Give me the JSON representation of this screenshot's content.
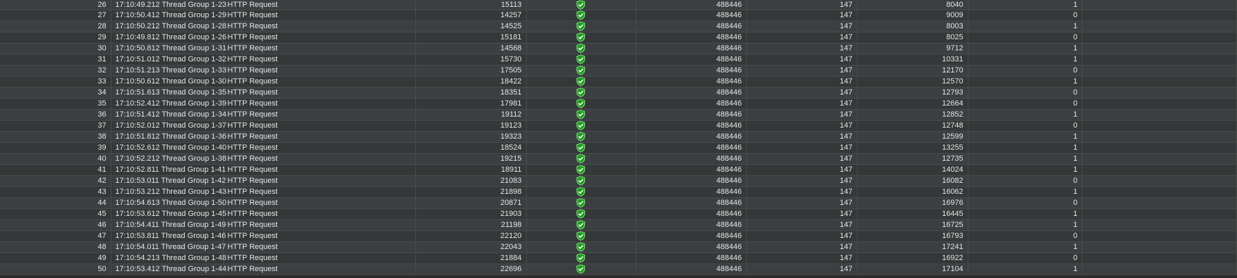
{
  "colors": {
    "row_odd": "#3c3f41",
    "row_even": "#353839",
    "grid": "#4a4a4a",
    "text": "#e6e6e6",
    "success": "#37c337"
  },
  "status_icon": "shield-check-icon",
  "rows": [
    {
      "no": "26",
      "start": "17:10:49.212",
      "thread": "Thread Group 1-23",
      "label": "HTTP Request",
      "time": "15113",
      "bytes": "488446",
      "sent": "147",
      "latency": "8040",
      "connect": "1"
    },
    {
      "no": "27",
      "start": "17:10:50.412",
      "thread": "Thread Group 1-29",
      "label": "HTTP Request",
      "time": "14257",
      "bytes": "488446",
      "sent": "147",
      "latency": "9009",
      "connect": "0"
    },
    {
      "no": "28",
      "start": "17:10:50.212",
      "thread": "Thread Group 1-28",
      "label": "HTTP Request",
      "time": "14525",
      "bytes": "488446",
      "sent": "147",
      "latency": "8003",
      "connect": "1"
    },
    {
      "no": "29",
      "start": "17:10:49.812",
      "thread": "Thread Group 1-26",
      "label": "HTTP Request",
      "time": "15181",
      "bytes": "488446",
      "sent": "147",
      "latency": "8025",
      "connect": "0"
    },
    {
      "no": "30",
      "start": "17:10:50.812",
      "thread": "Thread Group 1-31",
      "label": "HTTP Request",
      "time": "14568",
      "bytes": "488446",
      "sent": "147",
      "latency": "9712",
      "connect": "1"
    },
    {
      "no": "31",
      "start": "17:10:51.012",
      "thread": "Thread Group 1-32",
      "label": "HTTP Request",
      "time": "15730",
      "bytes": "488446",
      "sent": "147",
      "latency": "10331",
      "connect": "1"
    },
    {
      "no": "32",
      "start": "17:10:51.213",
      "thread": "Thread Group 1-33",
      "label": "HTTP Request",
      "time": "17505",
      "bytes": "488446",
      "sent": "147",
      "latency": "12170",
      "connect": "0"
    },
    {
      "no": "33",
      "start": "17:10:50.612",
      "thread": "Thread Group 1-30",
      "label": "HTTP Request",
      "time": "18422",
      "bytes": "488446",
      "sent": "147",
      "latency": "12570",
      "connect": "1"
    },
    {
      "no": "34",
      "start": "17:10:51.613",
      "thread": "Thread Group 1-35",
      "label": "HTTP Request",
      "time": "18351",
      "bytes": "488446",
      "sent": "147",
      "latency": "12793",
      "connect": "0"
    },
    {
      "no": "35",
      "start": "17:10:52.412",
      "thread": "Thread Group 1-39",
      "label": "HTTP Request",
      "time": "17981",
      "bytes": "488446",
      "sent": "147",
      "latency": "12664",
      "connect": "0"
    },
    {
      "no": "36",
      "start": "17:10:51.412",
      "thread": "Thread Group 1-34",
      "label": "HTTP Request",
      "time": "19112",
      "bytes": "488446",
      "sent": "147",
      "latency": "12852",
      "connect": "1"
    },
    {
      "no": "37",
      "start": "17:10:52.012",
      "thread": "Thread Group 1-37",
      "label": "HTTP Request",
      "time": "19123",
      "bytes": "488446",
      "sent": "147",
      "latency": "12748",
      "connect": "0"
    },
    {
      "no": "38",
      "start": "17:10:51.812",
      "thread": "Thread Group 1-36",
      "label": "HTTP Request",
      "time": "19323",
      "bytes": "488446",
      "sent": "147",
      "latency": "12599",
      "connect": "1"
    },
    {
      "no": "39",
      "start": "17:10:52.612",
      "thread": "Thread Group 1-40",
      "label": "HTTP Request",
      "time": "18524",
      "bytes": "488446",
      "sent": "147",
      "latency": "13255",
      "connect": "1"
    },
    {
      "no": "40",
      "start": "17:10:52.212",
      "thread": "Thread Group 1-38",
      "label": "HTTP Request",
      "time": "19215",
      "bytes": "488446",
      "sent": "147",
      "latency": "12735",
      "connect": "1"
    },
    {
      "no": "41",
      "start": "17:10:52.811",
      "thread": "Thread Group 1-41",
      "label": "HTTP Request",
      "time": "18911",
      "bytes": "488446",
      "sent": "147",
      "latency": "14024",
      "connect": "1"
    },
    {
      "no": "42",
      "start": "17:10:53.011",
      "thread": "Thread Group 1-42",
      "label": "HTTP Request",
      "time": "21083",
      "bytes": "488446",
      "sent": "147",
      "latency": "16082",
      "connect": "0"
    },
    {
      "no": "43",
      "start": "17:10:53.212",
      "thread": "Thread Group 1-43",
      "label": "HTTP Request",
      "time": "21898",
      "bytes": "488446",
      "sent": "147",
      "latency": "16062",
      "connect": "1"
    },
    {
      "no": "44",
      "start": "17:10:54.613",
      "thread": "Thread Group 1-50",
      "label": "HTTP Request",
      "time": "20871",
      "bytes": "488446",
      "sent": "147",
      "latency": "16976",
      "connect": "0"
    },
    {
      "no": "45",
      "start": "17:10:53.612",
      "thread": "Thread Group 1-45",
      "label": "HTTP Request",
      "time": "21903",
      "bytes": "488446",
      "sent": "147",
      "latency": "16445",
      "connect": "1"
    },
    {
      "no": "46",
      "start": "17:10:54.411",
      "thread": "Thread Group 1-49",
      "label": "HTTP Request",
      "time": "21198",
      "bytes": "488446",
      "sent": "147",
      "latency": "16725",
      "connect": "1"
    },
    {
      "no": "47",
      "start": "17:10:53.811",
      "thread": "Thread Group 1-46",
      "label": "HTTP Request",
      "time": "22120",
      "bytes": "488446",
      "sent": "147",
      "latency": "16793",
      "connect": "0"
    },
    {
      "no": "48",
      "start": "17:10:54.011",
      "thread": "Thread Group 1-47",
      "label": "HTTP Request",
      "time": "22043",
      "bytes": "488446",
      "sent": "147",
      "latency": "17241",
      "connect": "1"
    },
    {
      "no": "49",
      "start": "17:10:54.213",
      "thread": "Thread Group 1-48",
      "label": "HTTP Request",
      "time": "21884",
      "bytes": "488446",
      "sent": "147",
      "latency": "16922",
      "connect": "0"
    },
    {
      "no": "50",
      "start": "17:10:53.412",
      "thread": "Thread Group 1-44",
      "label": "HTTP Request",
      "time": "22696",
      "bytes": "488446",
      "sent": "147",
      "latency": "17104",
      "connect": "1"
    }
  ]
}
